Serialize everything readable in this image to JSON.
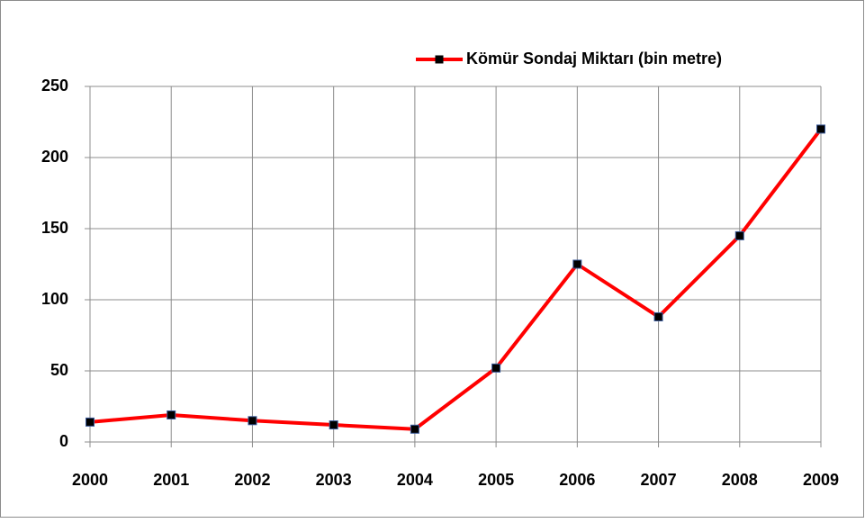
{
  "chart_data": {
    "type": "line",
    "categories": [
      "2000",
      "2001",
      "2002",
      "2003",
      "2004",
      "2005",
      "2006",
      "2007",
      "2008",
      "2009"
    ],
    "series": [
      {
        "name": "Kömür Sondaj Miktarı (bin metre)",
        "color": "#ff0000",
        "marker_color": "#000000",
        "values": [
          14,
          19,
          15,
          12,
          9,
          52,
          125,
          88,
          145,
          220
        ]
      }
    ],
    "ylim": [
      0,
      250
    ],
    "yticks": [
      0,
      50,
      100,
      150,
      200,
      250
    ],
    "grid": true,
    "legend": "top-right"
  }
}
